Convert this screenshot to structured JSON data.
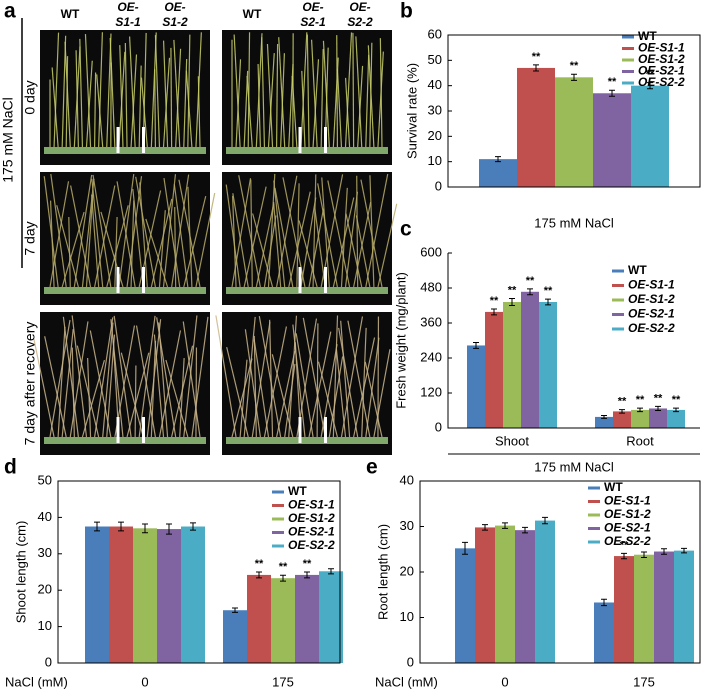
{
  "photo_panel": {
    "panel_label": "a",
    "condition": "175 mM NaCl",
    "rows": [
      "0 day",
      "7 day",
      "7 day after recovery"
    ],
    "column_labels": [
      [
        "WT"
      ],
      [
        "OE-",
        "S1-1"
      ],
      [
        "OE-",
        "S1-2"
      ],
      [
        "WT"
      ],
      [
        "OE-",
        "S2-1"
      ],
      [
        "OE-",
        "S2-2"
      ]
    ]
  },
  "chart_data": [
    {
      "type": "bar",
      "panel_label": "b",
      "ylabel": "Survival rate (%)",
      "categories": [
        "175 mM NaCl"
      ],
      "ylim": [
        0,
        60
      ],
      "yticks": [
        0,
        10,
        20,
        30,
        40,
        50,
        60
      ],
      "series": [
        {
          "name": "WT",
          "color": "#4a7ebb",
          "values": [
            11
          ],
          "errors": [
            1
          ],
          "annotations": [
            null
          ]
        },
        {
          "name": "OE-S1-1",
          "color": "#c0504d",
          "values": [
            47
          ],
          "errors": [
            1.2
          ],
          "annotations": [
            "**"
          ]
        },
        {
          "name": "OE-S1-2",
          "color": "#9bbb59",
          "values": [
            43.3
          ],
          "errors": [
            1.2
          ],
          "annotations": [
            "**"
          ]
        },
        {
          "name": "OE-S2-1",
          "color": "#8064a2",
          "values": [
            37
          ],
          "errors": [
            1.2
          ],
          "annotations": [
            "**"
          ]
        },
        {
          "name": "OE-S2-2",
          "color": "#4bacc6",
          "values": [
            40
          ],
          "errors": [
            1.2
          ],
          "annotations": [
            "**"
          ]
        }
      ]
    },
    {
      "type": "bar",
      "panel_label": "c",
      "ylabel": "Fresh weight (mg/plant)",
      "xlabel": "175 mM NaCl",
      "categories": [
        "Shoot",
        "Root"
      ],
      "ylim": [
        0,
        600
      ],
      "yticks": [
        0,
        120,
        240,
        360,
        480,
        600
      ],
      "series": [
        {
          "name": "WT",
          "color": "#4a7ebb",
          "values": [
            283,
            38
          ],
          "errors": [
            10,
            5
          ],
          "annotations": [
            null,
            null
          ]
        },
        {
          "name": "OE-S1-1",
          "color": "#c0504d",
          "values": [
            398,
            57
          ],
          "errors": [
            10,
            6
          ],
          "annotations": [
            "**",
            "**"
          ]
        },
        {
          "name": "OE-S1-2",
          "color": "#9bbb59",
          "values": [
            432,
            62
          ],
          "errors": [
            12,
            6
          ],
          "annotations": [
            "**",
            "**"
          ]
        },
        {
          "name": "OE-S2-1",
          "color": "#8064a2",
          "values": [
            467,
            67
          ],
          "errors": [
            10,
            7
          ],
          "annotations": [
            "**",
            "**"
          ]
        },
        {
          "name": "OE-S2-2",
          "color": "#4bacc6",
          "values": [
            432,
            62
          ],
          "errors": [
            10,
            6
          ],
          "annotations": [
            "**",
            "**"
          ]
        }
      ]
    },
    {
      "type": "bar",
      "panel_label": "d",
      "ylabel": "Shoot length (cm)",
      "xlabel": "NaCl (mM)",
      "categories": [
        "0",
        "175"
      ],
      "ylim": [
        0,
        50
      ],
      "yticks": [
        0,
        10,
        20,
        30,
        40,
        50
      ],
      "series": [
        {
          "name": "WT",
          "color": "#4a7ebb",
          "values": [
            37.5,
            14.5
          ],
          "errors": [
            1.2,
            0.6
          ],
          "annotations": [
            null,
            null
          ]
        },
        {
          "name": "OE-S1-1",
          "color": "#c0504d",
          "values": [
            37.5,
            24.2
          ],
          "errors": [
            1.2,
            0.8
          ],
          "annotations": [
            null,
            "**"
          ]
        },
        {
          "name": "OE-S1-2",
          "color": "#9bbb59",
          "values": [
            37,
            23.3
          ],
          "errors": [
            1.2,
            0.8
          ],
          "annotations": [
            null,
            "**"
          ]
        },
        {
          "name": "OE-S2-1",
          "color": "#8064a2",
          "values": [
            36.8,
            24.2
          ],
          "errors": [
            1.4,
            0.8
          ],
          "annotations": [
            null,
            "**"
          ]
        },
        {
          "name": "OE-S2-2",
          "color": "#4bacc6",
          "values": [
            37.5,
            25.2
          ],
          "errors": [
            1,
            0.7
          ],
          "annotations": [
            null,
            null
          ]
        }
      ]
    },
    {
      "type": "bar",
      "panel_label": "e",
      "ylabel": "Root length (cm)",
      "xlabel": "NaCl (mM)",
      "categories": [
        "0",
        "175"
      ],
      "ylim": [
        0,
        40
      ],
      "yticks": [
        0,
        10,
        20,
        30,
        40
      ],
      "series": [
        {
          "name": "WT",
          "color": "#4a7ebb",
          "values": [
            25.2,
            13.3
          ],
          "errors": [
            1.3,
            0.7
          ],
          "annotations": [
            null,
            null
          ]
        },
        {
          "name": "OE-S1-1",
          "color": "#c0504d",
          "values": [
            29.8,
            23.5
          ],
          "errors": [
            0.6,
            0.6
          ],
          "annotations": [
            null,
            "**"
          ]
        },
        {
          "name": "OE-S1-2",
          "color": "#9bbb59",
          "values": [
            30.2,
            23.8
          ],
          "errors": [
            0.6,
            0.6
          ],
          "annotations": [
            null,
            null
          ]
        },
        {
          "name": "OE-S2-1",
          "color": "#8064a2",
          "values": [
            29.2,
            24.5
          ],
          "errors": [
            0.6,
            0.6
          ],
          "annotations": [
            null,
            null
          ]
        },
        {
          "name": "OE-S2-2",
          "color": "#4bacc6",
          "values": [
            31.3,
            24.7
          ],
          "errors": [
            0.7,
            0.5
          ],
          "annotations": [
            null,
            null
          ]
        }
      ]
    }
  ]
}
